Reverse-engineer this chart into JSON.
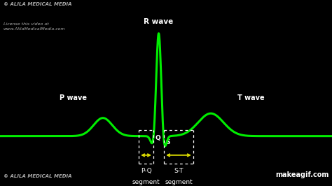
{
  "background_color": "#000000",
  "ecg_color": "#00ee00",
  "text_color": "#ffffff",
  "text_color_dim": "#aaaaaa",
  "yellow_color": "#dddd00",
  "labels": {
    "R_wave": "R wave",
    "P_wave": "P wave",
    "T_wave": "T wave",
    "Q": "Q",
    "S": "S",
    "PQ_segment": "P-Q",
    "ST_segment": "S-T",
    "segment": "segment"
  },
  "watermark_top1": "© ALILA MEDICAL MEDIA",
  "watermark_top2": "License this video at\nwww.AlilaMedicalMedia.com",
  "watermark_bot": "© ALILA MEDICAL MEDIA",
  "makeagif": "makeagif.com",
  "ecg_linewidth": 2.2,
  "xlim": [
    0,
    10
  ],
  "ylim": [
    -0.55,
    1.5
  ]
}
